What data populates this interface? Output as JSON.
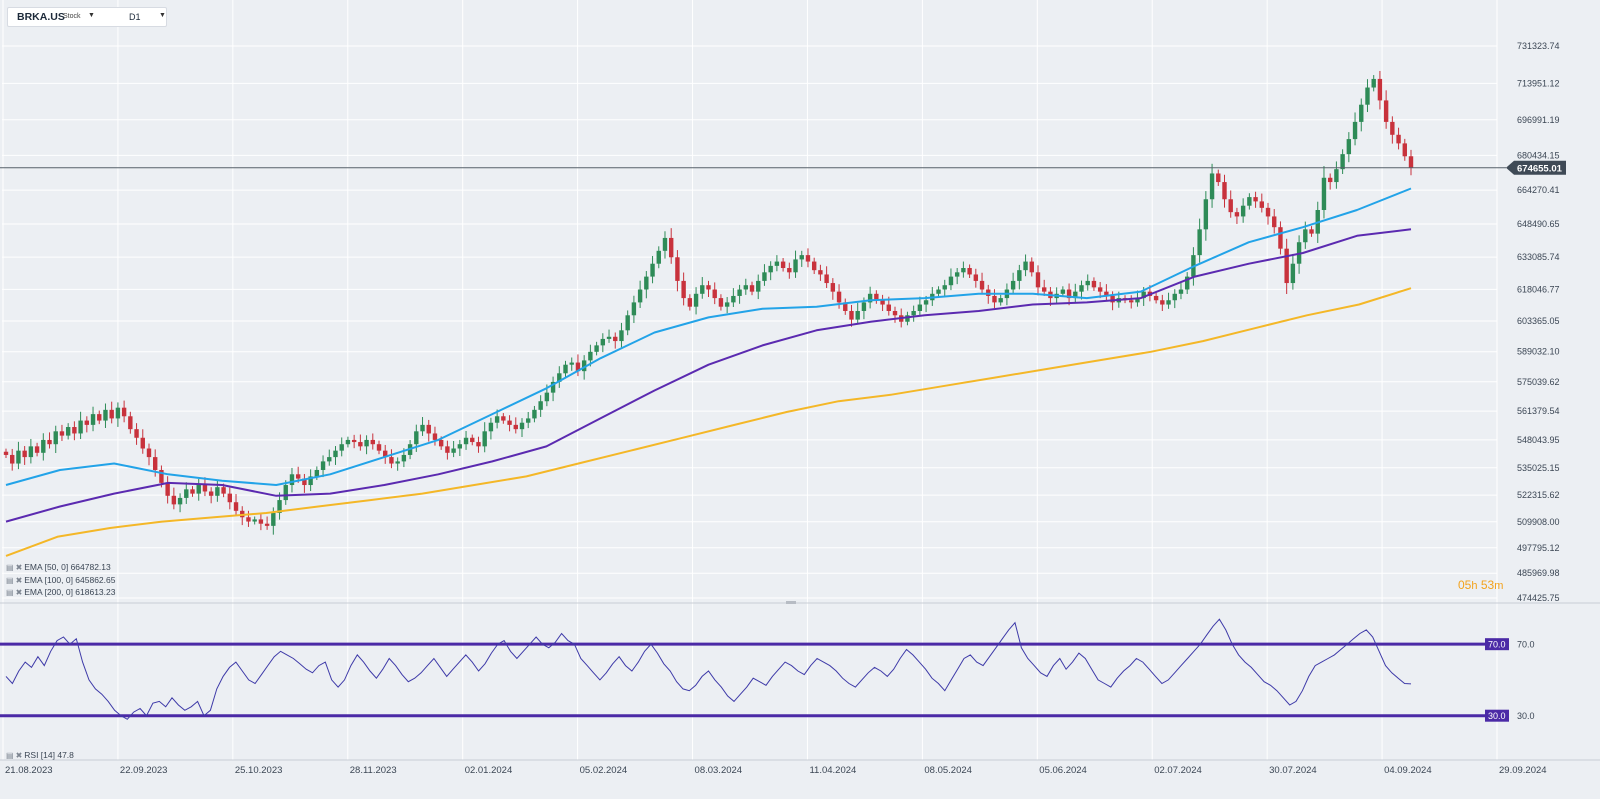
{
  "header": {
    "symbol": "BRKA.US",
    "symbol_type": "Stock",
    "timeframe": "D1",
    "dropdown_icon": "caret-down-icon"
  },
  "countdown": {
    "hours": "05",
    "hours_unit": "h",
    "minutes": "53",
    "minutes_unit": "m"
  },
  "indicators": {
    "ema50": "EMA  [50,  0]  664782.13",
    "ema100": "EMA  [100,  0]  645862.65",
    "ema200": "EMA  [200,  0]  618613.23",
    "rsi": "RSI  [14]  47.8",
    "settings_icon": "settings-icon",
    "remove_icon": "close-icon"
  },
  "colors": {
    "background": "#eceff3",
    "grid": "#ffffff",
    "up": "#2e8b57",
    "down": "#c8323c",
    "ema50": "#22a3e8",
    "ema100": "#5b2ab0",
    "ema200": "#f4b727",
    "rsi_line": "#3e3aa8",
    "rsi_level": "#4b2aa6",
    "price_line": "#56606a",
    "countdown": "#f3a21b"
  },
  "chart_data": {
    "type": "candlestick",
    "title": "",
    "x_ticks": [
      "21.08.2023",
      "22.09.2023",
      "25.10.2023",
      "28.11.2023",
      "02.01.2024",
      "05.02.2024",
      "08.03.2024",
      "11.04.2024",
      "08.05.2024",
      "05.06.2024",
      "02.07.2024",
      "30.07.2024",
      "04.09.2024",
      "29.09.2024"
    ],
    "y_ticks": [
      "731323.74",
      "713951.12",
      "696991.19",
      "680434.15",
      "664270.41",
      "648490.65",
      "633085.74",
      "618046.77",
      "603365.05",
      "589032.10",
      "575039.62",
      "561379.54",
      "548043.95",
      "535025.15",
      "522315.62",
      "509908.00",
      "497795.12",
      "485969.98",
      "474425.75"
    ],
    "current_price": "674655.01",
    "grid": true,
    "candles_close": [
      541000,
      537000,
      543000,
      540000,
      545000,
      542000,
      548000,
      546000,
      552000,
      550000,
      554000,
      551000,
      557000,
      555000,
      560000,
      557000,
      562000,
      558000,
      563000,
      559000,
      553000,
      549000,
      544000,
      540000,
      534000,
      528000,
      522000,
      518000,
      521000,
      525000,
      523000,
      527000,
      524000,
      522000,
      526000,
      523000,
      519000,
      515000,
      512000,
      510000,
      511000,
      509000,
      508000,
      514000,
      520000,
      527000,
      532000,
      530000,
      527000,
      531000,
      534000,
      538000,
      540000,
      543000,
      546000,
      548000,
      547000,
      545000,
      548000,
      546000,
      543000,
      540000,
      537000,
      538000,
      541000,
      546000,
      552000,
      555000,
      551000,
      548000,
      545000,
      542000,
      544000,
      546000,
      549000,
      547000,
      545000,
      552000,
      556000,
      559000,
      557000,
      555000,
      553000,
      556000,
      558000,
      562000,
      566000,
      570000,
      575000,
      579000,
      583000,
      584000,
      580000,
      585000,
      589000,
      592000,
      595000,
      596000,
      594000,
      599000,
      606000,
      612000,
      618000,
      624000,
      630000,
      636000,
      642000,
      633000,
      622000,
      614000,
      610000,
      616000,
      620000,
      618000,
      614000,
      610000,
      612000,
      615000,
      618000,
      620000,
      617000,
      622000,
      626000,
      629000,
      631000,
      628000,
      626000,
      632000,
      634000,
      631000,
      627000,
      625000,
      621000,
      617000,
      612000,
      608000,
      604000,
      608000,
      612000,
      616000,
      613000,
      611000,
      608000,
      606000,
      603000,
      606000,
      608000,
      611000,
      613000,
      616000,
      618000,
      620000,
      624000,
      626000,
      628000,
      625000,
      622000,
      618000,
      615000,
      612000,
      614000,
      618000,
      622000,
      627000,
      631000,
      626000,
      619000,
      617000,
      614000,
      616000,
      618000,
      614000,
      617000,
      620000,
      622000,
      619000,
      617000,
      615000,
      612000,
      614000,
      613000,
      612000,
      614000,
      617000,
      615000,
      613000,
      611000,
      613000,
      616000,
      618000,
      624000,
      634000,
      646000,
      660000,
      672000,
      668000,
      660000,
      654000,
      652000,
      657000,
      661000,
      659000,
      656000,
      652000,
      647000,
      637000,
      621000,
      630000,
      640000,
      646000,
      644000,
      655000,
      670000,
      668000,
      674000,
      681000,
      688000,
      696000,
      704000,
      712000,
      716000,
      706000,
      696000,
      690000,
      686000,
      680000,
      674655
    ],
    "candles_count": 227,
    "ema50": [
      527000,
      534000,
      537000,
      532000,
      529000,
      527000,
      532000,
      540000,
      548000,
      560000,
      572000,
      586000,
      598000,
      605000,
      609000,
      610000,
      613000,
      614000,
      616000,
      616000,
      614000,
      617000,
      629000,
      640000,
      647000,
      655000,
      665000
    ],
    "ema100": [
      510000,
      517000,
      523000,
      528000,
      527000,
      522000,
      523000,
      527000,
      532000,
      538000,
      545000,
      558000,
      571000,
      583000,
      592000,
      599000,
      603000,
      606000,
      608000,
      611000,
      612000,
      614000,
      624000,
      630000,
      635000,
      643000,
      646000
    ],
    "ema200": [
      494000,
      503000,
      507000,
      510000,
      512000,
      514000,
      517000,
      520000,
      523000,
      527000,
      531000,
      537000,
      543000,
      549000,
      555000,
      561000,
      566000,
      569000,
      573000,
      577000,
      581000,
      585000,
      589000,
      594000,
      600000,
      606000,
      611000,
      618600
    ],
    "rsi": {
      "levels": [
        70.0,
        30.0
      ],
      "y_ticks": [
        "70.0",
        "30.0"
      ],
      "values": [
        52,
        48,
        55,
        60,
        57,
        63,
        58,
        66,
        72,
        74,
        70,
        73,
        60,
        50,
        45,
        42,
        38,
        33,
        30,
        28,
        32,
        34,
        30,
        37,
        38,
        35,
        40,
        36,
        33,
        35,
        38,
        30,
        33,
        45,
        52,
        57,
        60,
        55,
        50,
        48,
        53,
        58,
        63,
        66,
        64,
        62,
        59,
        56,
        54,
        58,
        60,
        50,
        46,
        50,
        58,
        64,
        60,
        55,
        51,
        56,
        62,
        58,
        53,
        49,
        51,
        54,
        58,
        62,
        57,
        52,
        56,
        60,
        64,
        60,
        55,
        59,
        65,
        70,
        72,
        66,
        62,
        66,
        70,
        74,
        70,
        68,
        71,
        76,
        72,
        70,
        62,
        58,
        54,
        50,
        54,
        59,
        63,
        58,
        55,
        60,
        66,
        70,
        65,
        59,
        55,
        49,
        45,
        44,
        47,
        52,
        55,
        50,
        46,
        41,
        38,
        42,
        46,
        51,
        49,
        47,
        52,
        56,
        60,
        58,
        55,
        53,
        58,
        62,
        60,
        58,
        55,
        51,
        48,
        46,
        50,
        54,
        57,
        55,
        52,
        56,
        62,
        67,
        64,
        60,
        56,
        51,
        48,
        44,
        50,
        56,
        62,
        64,
        60,
        58,
        63,
        68,
        73,
        78,
        82,
        68,
        62,
        58,
        54,
        52,
        58,
        62,
        56,
        60,
        65,
        62,
        56,
        50,
        48,
        46,
        51,
        55,
        58,
        62,
        60,
        56,
        52,
        48,
        50,
        54,
        58,
        62,
        66,
        70,
        75,
        80,
        84,
        78,
        70,
        64,
        60,
        57,
        53,
        49,
        47,
        44,
        40,
        36,
        38,
        44,
        52,
        58,
        60,
        62,
        64,
        67,
        70,
        73,
        76,
        78,
        74,
        66,
        58,
        54,
        51,
        48,
        47.8
      ]
    }
  }
}
